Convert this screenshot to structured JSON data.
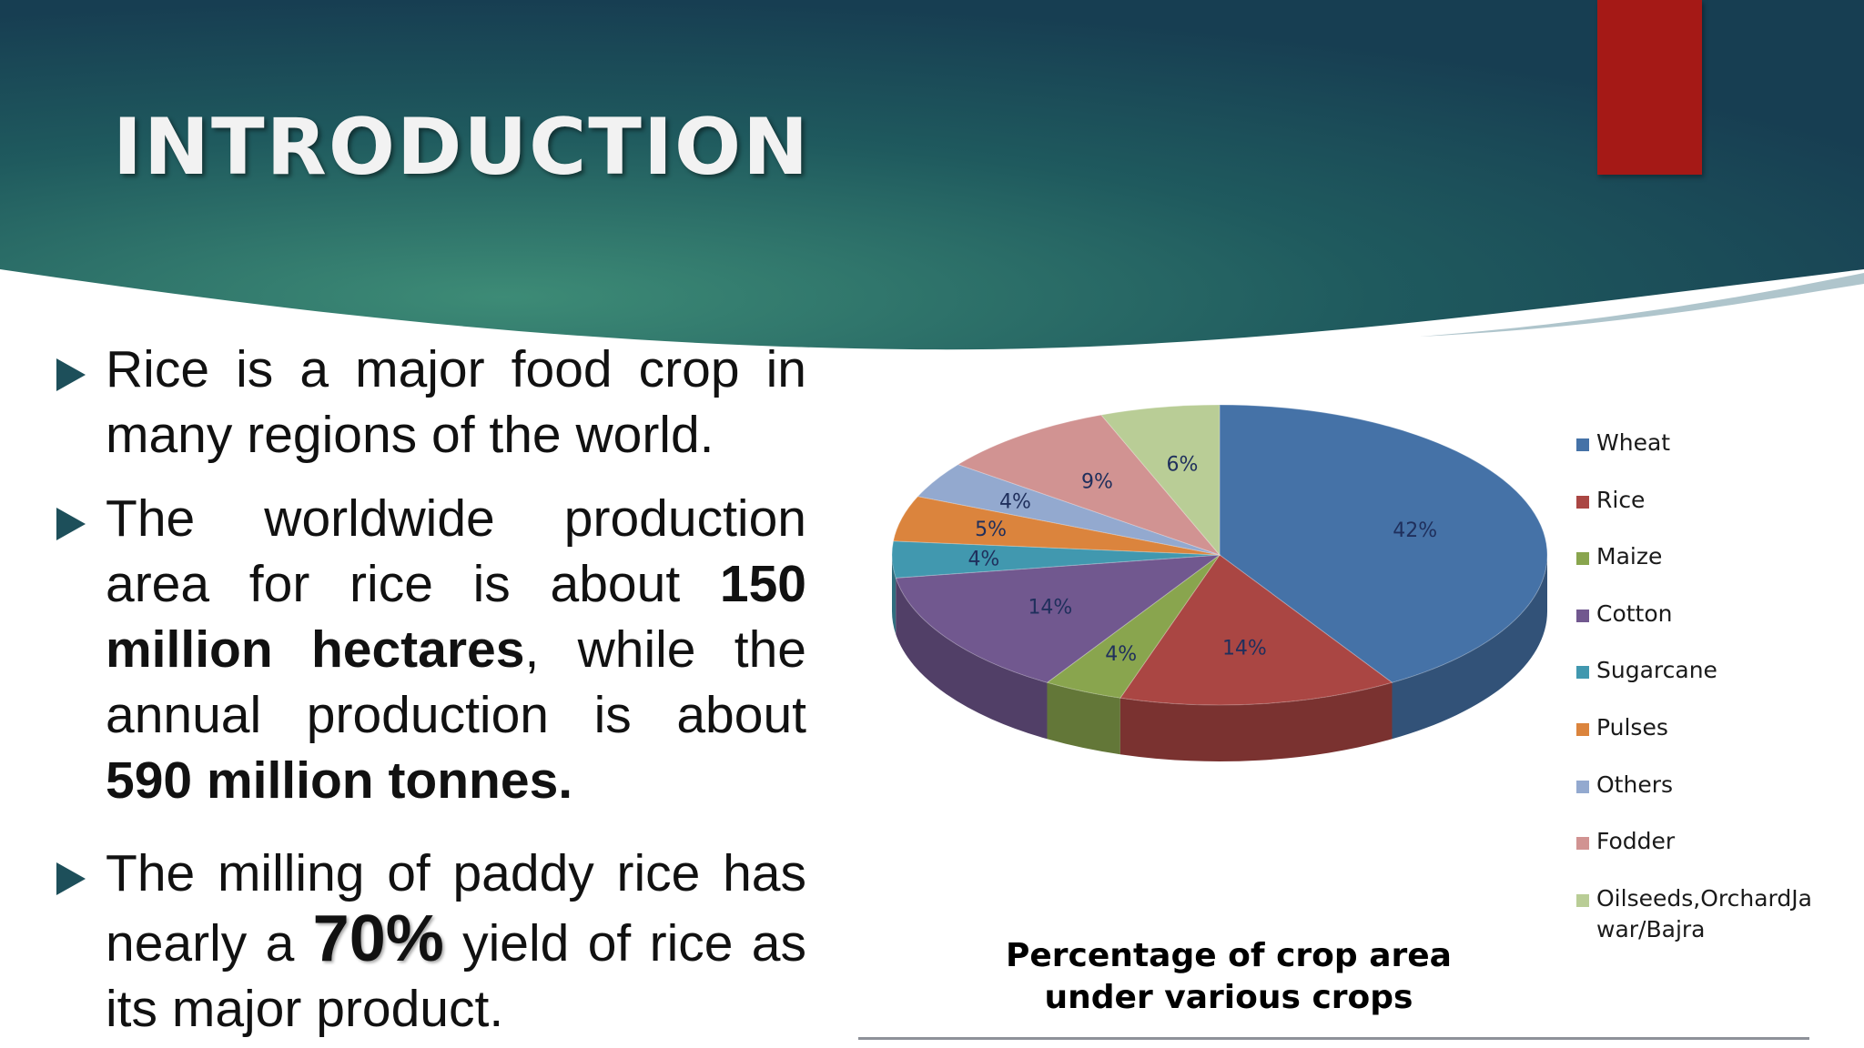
{
  "slide": {
    "title": "INTRODUCTION",
    "bullets": [
      {
        "text": "Rice is a major food crop in many regions of the world."
      },
      {
        "p1": "The worldwide production area for rice is about ",
        "bold1": "150 million hectares",
        "p2": ", while the annual production is about ",
        "bold2": "590 million tonnes."
      },
      {
        "p1": "The milling of paddy rice has nearly a ",
        "bold": "70%",
        "p2": " yield of rice as its major product."
      }
    ],
    "accent_color": "#a51916",
    "banner_color": "#1f5a5e"
  },
  "chart_data": {
    "type": "pie",
    "title": "Percentage of crop area under various crops",
    "caption_lines": [
      "Percentage of crop area",
      "under various crops"
    ],
    "legend_position": "right",
    "unit": "%",
    "slices": [
      {
        "name": "Wheat",
        "value": 42,
        "label": "42%",
        "color": "#4572a7"
      },
      {
        "name": "Rice",
        "value": 14,
        "label": "14%",
        "color": "#aa4643"
      },
      {
        "name": "Maize",
        "value": 4,
        "label": "4%",
        "color": "#89a54e"
      },
      {
        "name": "Cotton",
        "value": 14,
        "label": "14%",
        "color": "#71588f"
      },
      {
        "name": "Sugarcane",
        "value": 4,
        "label": "4%",
        "color": "#4198af"
      },
      {
        "name": "Pulses",
        "value": 5,
        "label": "5%",
        "color": "#db843d"
      },
      {
        "name": "Others",
        "value": 4,
        "label": "4%",
        "color": "#93a9cf"
      },
      {
        "name": "Fodder",
        "value": 9,
        "label": "9%",
        "color": "#d19392"
      },
      {
        "name": "Oilseeds,OrchardJawar/Bajra",
        "value": 6,
        "label": "6%",
        "color": "#b9cd96"
      }
    ],
    "legend_lines": {
      "Oilseeds,OrchardJawar/Bajra": [
        "Oilseeds,OrchardJa",
        "war/Bajra"
      ]
    }
  }
}
